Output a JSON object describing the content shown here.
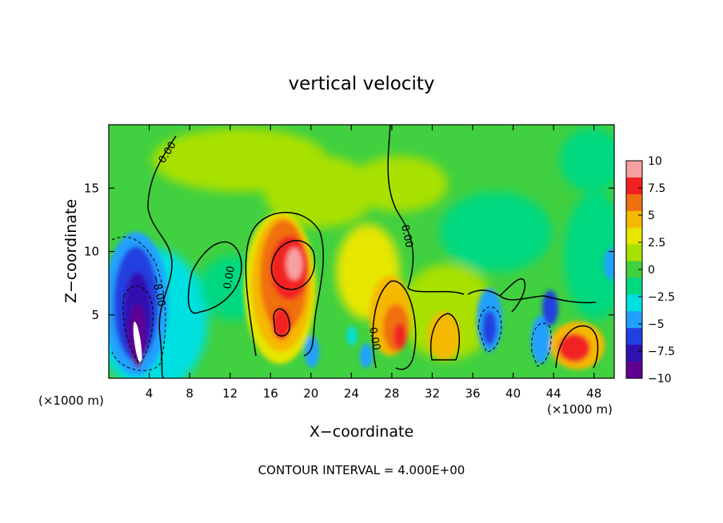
{
  "chart_data": {
    "type": "heatmap",
    "title": "vertical velocity",
    "xlabel": "X−coordinate",
    "ylabel": "Z−coordinate",
    "x_unit_left": "(×1000 m)",
    "x_unit_right": "(×1000 m)",
    "footer": "CONTOUR INTERVAL = 4.000E+00",
    "xlim": [
      0,
      50
    ],
    "ylim": [
      0,
      20
    ],
    "x_ticks": [
      4,
      8,
      12,
      16,
      20,
      24,
      28,
      32,
      36,
      40,
      44,
      48
    ],
    "y_ticks": [
      5,
      10,
      15
    ],
    "colorbar": {
      "ticks": [
        10,
        7.5,
        5,
        2.5,
        0,
        -2.5,
        -5,
        -7.5,
        -10
      ],
      "tick_labels": [
        "10",
        "7.5",
        "5",
        "2.5",
        "0",
        "−2.5",
        "−5",
        "−7.5",
        "−10"
      ],
      "colors": [
        "#f7a0a0",
        "#f22020",
        "#f07010",
        "#f5b800",
        "#e6e600",
        "#a8e000",
        "#40d040",
        "#00d880",
        "#00e0e0",
        "#20a0ff",
        "#2040e0",
        "#3010b0",
        "#600090"
      ]
    },
    "contour_labels": [
      "0.00",
      "0.00",
      "0.00",
      "−8.00",
      "0.00",
      "0.00"
    ],
    "features": [
      {
        "x": 3,
        "z": 6.5,
        "value": -10
      },
      {
        "x": 3.2,
        "z": 3,
        "value": -10
      },
      {
        "x": 18,
        "z": 9,
        "value": 9.5
      },
      {
        "x": 17.5,
        "z": 4,
        "value": 8.5
      },
      {
        "x": 28.5,
        "z": 4.5,
        "value": 6
      },
      {
        "x": 29,
        "z": 3,
        "value": 8
      },
      {
        "x": 33.5,
        "z": 3.5,
        "value": 4.5
      },
      {
        "x": 37.5,
        "z": 4.5,
        "value": -6
      },
      {
        "x": 42.5,
        "z": 3,
        "value": -6
      },
      {
        "x": 43.5,
        "z": 6,
        "value": -6
      },
      {
        "x": 46,
        "z": 2.5,
        "value": 8
      },
      {
        "x": 20,
        "z": 2,
        "value": -5
      },
      {
        "x": 25.5,
        "z": 2,
        "value": -4
      },
      {
        "x": 49.5,
        "z": 9,
        "value": -4
      },
      {
        "x": 38,
        "z": 13,
        "value": -2.5
      }
    ]
  }
}
